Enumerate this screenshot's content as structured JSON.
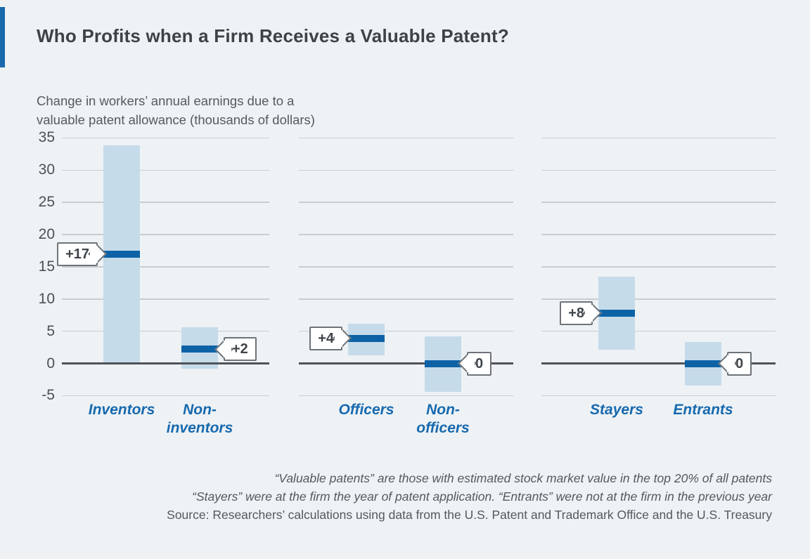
{
  "page": {
    "title": "Who Profits when a Firm Receives a Valuable Patent?",
    "footnotes": {
      "line1": "“Valuable patents” are those with estimated stock market value in the top 20% of all patents",
      "line2": "“Stayers” were at the firm the year of patent application. “Entrants” were not at the firm in the previous year",
      "line3": "Source: Researchers’ calculations using data from the U.S. Patent and Trademark Office and the U.S. Treasury"
    }
  },
  "colors": {
    "background": "#eef2f5",
    "accent": "#1a69ac",
    "confidence_band": "#c6dbea",
    "estimate_bar": "#0d62a6",
    "gridline": "#c8cdd2",
    "zero_axis": "#4f5358",
    "category_label": "#1769ae",
    "callout_border": "#6e7378"
  },
  "chart_data": {
    "type": "range-bar",
    "title": "Who Profits when a Firm Receives a Valuable Patent?",
    "subtitle": "Change in workers’ annual earnings due to a\nvaluable patent allowance (thousands of dollars)",
    "ylim": [
      -5,
      35
    ],
    "yticks": [
      35,
      30,
      25,
      20,
      15,
      10,
      5,
      0,
      -5
    ],
    "grid": true,
    "legend": "none",
    "groups": [
      {
        "categories": [
          {
            "label": "Inventors",
            "estimate": 17,
            "estimate_label": "+17",
            "range": [
              0.2,
              33.9
            ],
            "callout_side": "left"
          },
          {
            "label": "Non-\ninventors",
            "estimate": 2.2,
            "estimate_label": "+2",
            "range": [
              -0.8,
              5.6
            ],
            "callout_side": "right"
          }
        ]
      },
      {
        "categories": [
          {
            "label": "Officers",
            "estimate": 3.9,
            "estimate_label": "+4",
            "range": [
              1.2,
              6.2
            ],
            "callout_side": "left"
          },
          {
            "label": "Non-\nofficers",
            "estimate": 0,
            "estimate_label": "0",
            "range": [
              -4.4,
              4.2
            ],
            "callout_side": "right"
          }
        ]
      },
      {
        "categories": [
          {
            "label": "Stayers",
            "estimate": 7.8,
            "estimate_label": "+8",
            "range": [
              2.1,
              13.5
            ],
            "callout_side": "left"
          },
          {
            "label": "Entrants",
            "estimate": 0,
            "estimate_label": "0",
            "range": [
              -3.4,
              3.3
            ],
            "callout_side": "right"
          }
        ]
      }
    ]
  }
}
